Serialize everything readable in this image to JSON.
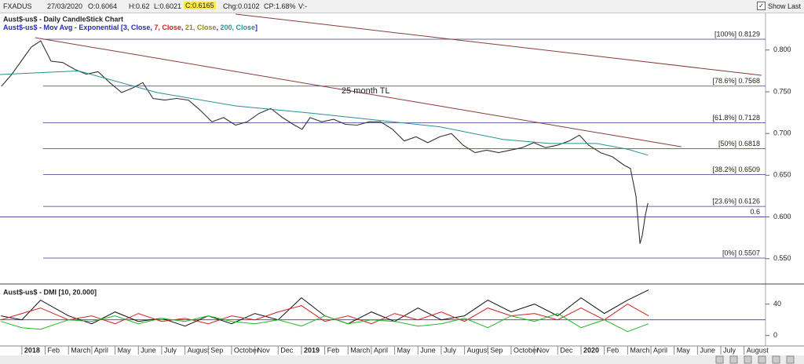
{
  "toolbar": {
    "symbol": "FXADUS",
    "date": "27/03/2020",
    "open": "O:0.6064",
    "high": "H:0.62",
    "low": "L:0.6021",
    "close": "C:0.6165",
    "change": "Chg:0.0102",
    "change_pct": "CP:1.68%",
    "volume": "V:-",
    "show_last": "Show Last"
  },
  "chart_data": [
    {
      "type": "line",
      "title": "Aust$-us$ - Daily CandleStick Chart",
      "ma_legend": {
        "prefix": "Aust$-us$ - Mov Avg - Exponential [",
        "separator": ", ",
        "suffix": "]",
        "items": [
          {
            "text": "3, Close",
            "color": "#2a2ab0"
          },
          {
            "text": "7, Close",
            "color": "#d02020"
          },
          {
            "text": "21, Close",
            "color": "#8a8a20"
          },
          {
            "text": "200, Close",
            "color": "#2a9090"
          }
        ]
      },
      "xlim": [
        -0.94,
        31.92
      ],
      "ylim": [
        0.5197,
        0.843
      ],
      "yticks": [
        {
          "value": 0.55,
          "label": "0.550"
        },
        {
          "value": 0.6,
          "label": "0.600"
        },
        {
          "value": 0.65,
          "label": "0.650"
        },
        {
          "value": 0.7,
          "label": "0.700"
        },
        {
          "value": 0.75,
          "label": "0.750"
        },
        {
          "value": 0.8,
          "label": "0.800"
        }
      ],
      "series": [
        {
          "color": "#333333",
          "x": [
            -0.88,
            -0.44,
            0.4,
            0.81,
            1.25,
            1.75,
            2.26,
            2.76,
            3.27,
            3.77,
            4.28,
            4.79,
            5.19,
            5.63,
            6.13,
            6.64,
            7.15,
            7.65,
            8.16,
            8.66,
            9.17,
            9.67,
            10.18,
            10.68,
            11.19,
            11.7,
            12.03,
            12.37,
            12.87,
            13.38,
            13.89,
            14.39,
            14.9,
            15.4,
            15.91,
            16.41,
            16.92,
            17.42,
            17.93,
            18.44,
            18.94,
            19.45,
            19.95,
            20.46,
            20.96,
            21.47,
            21.97,
            22.48,
            22.99,
            23.49,
            23.93,
            24.33,
            24.84,
            25.35,
            25.85,
            26.12,
            26.36,
            26.53,
            26.63,
            26.76,
            26.87
          ],
          "values": [
            0.7565,
            0.7706,
            0.8035,
            0.811,
            0.7866,
            0.785,
            0.777,
            0.771,
            0.774,
            0.761,
            0.749,
            0.755,
            0.761,
            0.742,
            0.74,
            0.742,
            0.74,
            0.728,
            0.714,
            0.719,
            0.71,
            0.714,
            0.724,
            0.73,
            0.719,
            0.71,
            0.705,
            0.719,
            0.714,
            0.717,
            0.711,
            0.71,
            0.714,
            0.714,
            0.705,
            0.691,
            0.696,
            0.689,
            0.696,
            0.7,
            0.686,
            0.677,
            0.68,
            0.677,
            0.68,
            0.683,
            0.689,
            0.683,
            0.686,
            0.691,
            0.698,
            0.686,
            0.677,
            0.672,
            0.662,
            0.658,
            0.625,
            0.568,
            0.578,
            0.602,
            0.6165
          ]
        },
        {
          "color": "#2a9090",
          "x": [
            -0.94,
            2.43,
            5.8,
            9.17,
            12.54,
            15.91,
            17.93,
            20.63,
            22.65,
            24.67,
            26.02,
            26.87
          ],
          "values": [
            0.7706,
            0.775,
            0.749,
            0.733,
            0.724,
            0.714,
            0.708,
            0.693,
            0.688,
            0.688,
            0.681,
            0.674
          ]
        }
      ],
      "levels": [
        {
          "label": "[100%] 0.8129",
          "value": 0.8129
        },
        {
          "label": "[78.6%] 0.7568",
          "value": 0.7568
        },
        {
          "label": "[61.8%] 0.7128",
          "value": 0.7128
        },
        {
          "label": "[50%] 0.6818",
          "value": 0.6818
        },
        {
          "label": "[38.2%] 0.6509",
          "value": 0.6509
        },
        {
          "label": "[23.6%] 0.6126",
          "value": 0.6126
        },
        {
          "label": "[0%] 0.5507",
          "value": 0.5507
        }
      ],
      "hline": {
        "label": "0.6",
        "value": 0.6
      },
      "trendlines": [
        {
          "x": [
            0.57,
            28.31
          ],
          "values": [
            0.8148,
            0.684
          ]
        },
        {
          "x": [
            9.17,
            31.75
          ],
          "values": [
            0.843,
            0.7697
          ]
        }
      ],
      "annotation": "25 month TL"
    },
    {
      "type": "line",
      "title": "Aust$-us$ - DMI [10, 20.000]",
      "xlim": [
        -0.94,
        31.92
      ],
      "ylim": [
        -12.3,
        61.6
      ],
      "yticks": [
        0,
        40
      ],
      "reference_line": 20,
      "xticks": [
        {
          "value": 0,
          "label": "2018"
        },
        {
          "value": 1,
          "label": "Feb"
        },
        {
          "value": 2,
          "label": "March"
        },
        {
          "value": 3,
          "label": "April"
        },
        {
          "value": 4,
          "label": "May"
        },
        {
          "value": 5,
          "label": "June"
        },
        {
          "value": 6,
          "label": "July"
        },
        {
          "value": 7,
          "label": "August"
        },
        {
          "value": 8,
          "label": "Sep"
        },
        {
          "value": 9,
          "label": "October"
        },
        {
          "value": 10,
          "label": "Nov"
        },
        {
          "value": 11,
          "label": "Dec"
        },
        {
          "value": 12,
          "label": "2019"
        },
        {
          "value": 13,
          "label": "Feb"
        },
        {
          "value": 14,
          "label": "March"
        },
        {
          "value": 15,
          "label": "April"
        },
        {
          "value": 16,
          "label": "May"
        },
        {
          "value": 17,
          "label": "June"
        },
        {
          "value": 18,
          "label": "July"
        },
        {
          "value": 19,
          "label": "August"
        },
        {
          "value": 20,
          "label": "Sep"
        },
        {
          "value": 21,
          "label": "October"
        },
        {
          "value": 22,
          "label": "Nov"
        },
        {
          "value": 23,
          "label": "Dec"
        },
        {
          "value": 24,
          "label": "2020"
        },
        {
          "value": 25,
          "label": "Feb"
        },
        {
          "value": 26,
          "label": "March"
        },
        {
          "value": 27,
          "label": "April"
        },
        {
          "value": 28,
          "label": "May"
        },
        {
          "value": 29,
          "label": "June"
        },
        {
          "value": 30,
          "label": "July"
        },
        {
          "value": 31,
          "label": "August"
        }
      ],
      "x": [
        -0.9,
        0,
        0.8,
        2,
        3,
        4,
        5,
        6,
        7,
        8,
        9,
        10,
        11,
        12,
        13,
        14,
        15,
        16,
        17,
        18,
        19,
        20,
        21,
        22,
        23,
        24,
        25,
        26,
        26.9
      ],
      "series": [
        {
          "color": "#111111",
          "values": [
            25,
            20,
            45,
            25,
            15,
            30,
            18,
            22,
            12,
            25,
            15,
            28,
            20,
            48,
            25,
            15,
            30,
            18,
            35,
            20,
            25,
            45,
            30,
            40,
            25,
            48,
            28,
            45,
            58
          ]
        },
        {
          "color": "#d02020",
          "values": [
            20,
            28,
            35,
            20,
            25,
            15,
            28,
            18,
            22,
            15,
            25,
            20,
            30,
            38,
            18,
            25,
            15,
            28,
            20,
            30,
            18,
            35,
            25,
            28,
            20,
            35,
            20,
            40,
            25
          ]
        },
        {
          "color": "#22b822",
          "values": [
            18,
            10,
            8,
            20,
            18,
            25,
            15,
            22,
            18,
            25,
            18,
            15,
            20,
            12,
            25,
            15,
            20,
            18,
            12,
            15,
            22,
            10,
            25,
            18,
            28,
            10,
            20,
            5,
            15
          ]
        }
      ]
    }
  ]
}
